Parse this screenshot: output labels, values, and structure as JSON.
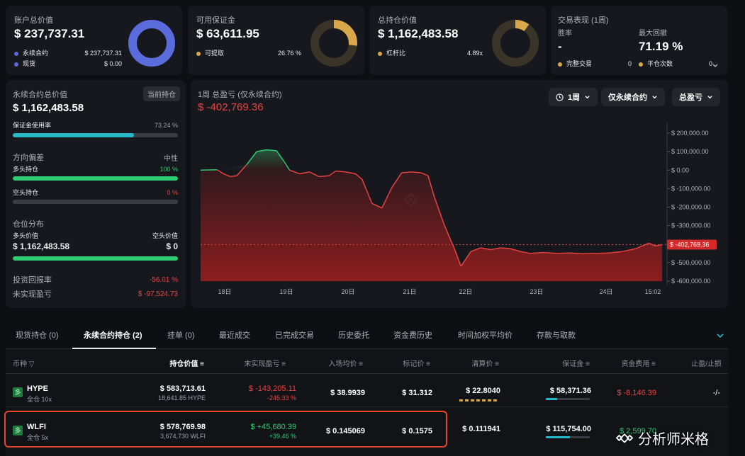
{
  "colors": {
    "accent_blue": "#5a6bdc",
    "accent_gold": "#d9a84a",
    "green": "#2ecc71",
    "red": "#e84343",
    "cyan": "#27b8c6",
    "highlight_border": "#e8452c"
  },
  "account": {
    "title": "账户总价值",
    "value": "$ 237,737.31",
    "perp_label": "永续合约",
    "perp_value": "$ 237,737.31",
    "spot_label": "现货",
    "spot_value": "$ 0.00",
    "perp_share": 1.0
  },
  "margin": {
    "title": "可用保证金",
    "value": "$ 63,611.95",
    "withdrawable_label": "可提取",
    "withdrawable_value": "26.76 %",
    "share": 0.2676
  },
  "holdings": {
    "title": "总持仓价值",
    "value": "$ 1,162,483.58",
    "leverage_label": "杠杆比",
    "leverage_value": "4.89x",
    "share": 0.1
  },
  "performance": {
    "title": "交易表现 (1周)",
    "win_rate_label": "胜率",
    "win_rate_value": "-",
    "max_dd_label": "最大回撤",
    "max_dd_value": "71.19 %",
    "completed_label": "完整交易",
    "completed_value": "0",
    "closed_label": "平仓次数",
    "closed_value": "0"
  },
  "perp_panel": {
    "title": "永续合约总价值",
    "badge": "当前持仓",
    "value": "$ 1,162,483.58",
    "margin_use_label": "保证金使用率",
    "margin_use_value": "73.24 %",
    "margin_use": 0.7324,
    "bias_label": "方向偏差",
    "bias_value": "中性",
    "long_label": "多头持仓",
    "long_value": "100 %",
    "long_share": 1.0,
    "short_label": "空头持仓",
    "short_value": "0 %",
    "short_share": 0.0,
    "dist_label": "仓位分布",
    "dist_long_label": "多头价值",
    "dist_short_label": "空头价值",
    "dist_long_value": "$ 1,162,483.58",
    "dist_short_value": "$ 0",
    "dist_long_share": 1.0,
    "roi_label": "投资回报率",
    "roi_value": "-56.01 %",
    "upnl_label": "未实现盈亏",
    "upnl_value": "$ -97,524.73"
  },
  "chart_header": {
    "title": "1周 总盈亏 (仅永续合约)",
    "value": "$ -402,769.36",
    "period": "1周",
    "scope": "仅永续合约",
    "metric": "总盈亏",
    "clock_icon": "clock-icon",
    "chevron_icon": "chevron-down-icon"
  },
  "chart_data": {
    "type": "area",
    "x_labels": [
      "18日",
      "19日",
      "20日",
      "21日",
      "22日",
      "23日",
      "24日",
      "15:02"
    ],
    "y_ticks": [
      "$ 200,000.00",
      "$ 100,000.00",
      "$ 0.00",
      "$ -100,000.00",
      "$ -200,000.00",
      "$ -300,000.00",
      "$ -400,000.00",
      "$ -500,000.00",
      "$ -600,000.00"
    ],
    "ylim": [
      -600000,
      200000
    ],
    "current_label": "$ -402,769.36",
    "current_value": -402769.36,
    "points": [
      [
        0.0,
        0
      ],
      [
        0.25,
        2000
      ],
      [
        0.35,
        -20000
      ],
      [
        0.45,
        -35000
      ],
      [
        0.55,
        -30000
      ],
      [
        0.7,
        30000
      ],
      [
        0.85,
        100000
      ],
      [
        1.0,
        110000
      ],
      [
        1.15,
        105000
      ],
      [
        1.25,
        55000
      ],
      [
        1.35,
        0
      ],
      [
        1.5,
        -20000
      ],
      [
        1.65,
        -10000
      ],
      [
        1.8,
        -35000
      ],
      [
        1.95,
        -30000
      ],
      [
        2.05,
        -5000
      ],
      [
        2.2,
        -10000
      ],
      [
        2.35,
        -20000
      ],
      [
        2.45,
        -50000
      ],
      [
        2.6,
        -180000
      ],
      [
        2.75,
        -205000
      ],
      [
        2.9,
        -95000
      ],
      [
        3.05,
        -15000
      ],
      [
        3.2,
        -10000
      ],
      [
        3.35,
        -15000
      ],
      [
        3.45,
        -30000
      ],
      [
        3.55,
        -150000
      ],
      [
        3.7,
        -300000
      ],
      [
        3.85,
        -425000
      ],
      [
        3.95,
        -520000
      ],
      [
        4.1,
        -440000
      ],
      [
        4.25,
        -420000
      ],
      [
        4.4,
        -430000
      ],
      [
        4.55,
        -420000
      ],
      [
        4.7,
        -425000
      ],
      [
        4.85,
        -440000
      ],
      [
        5.0,
        -450000
      ],
      [
        5.2,
        -445000
      ],
      [
        5.4,
        -450000
      ],
      [
        5.6,
        -448000
      ],
      [
        5.8,
        -452000
      ],
      [
        6.0,
        -450000
      ],
      [
        6.2,
        -448000
      ],
      [
        6.4,
        -440000
      ],
      [
        6.6,
        -425000
      ],
      [
        6.8,
        -395000
      ],
      [
        6.9,
        -410000
      ],
      [
        7.0,
        -402769
      ]
    ]
  },
  "tabs": [
    "现货持仓 (0)",
    "永续合约持仓 (2)",
    "挂单 (0)",
    "最近成交",
    "已完成交易",
    "历史委托",
    "资金费历史",
    "时间加权平均价",
    "存款与取款"
  ],
  "table": {
    "headers": [
      "币种",
      "持仓价值",
      "未实现盈亏",
      "入场均价",
      "标记价",
      "清算价",
      "保证金",
      "资金费用",
      "止盈/止损"
    ],
    "rows": [
      {
        "badge": "多",
        "coin": "HYPE",
        "mode": "全仓 10x",
        "value": "$ 583,713.61",
        "qty": "18,641.85 HYPE",
        "upnl": "$ -143,205.11",
        "upnl_pct": "-245.33 %",
        "entry": "$ 38.9939",
        "mark": "$ 31.312",
        "liq": "$ 22.8040",
        "margin": "$ 58,371.36",
        "margin_share": 0.25,
        "funding": "$ -8,146.39",
        "tpsl": "-/-"
      },
      {
        "badge": "多",
        "coin": "WLFI",
        "mode": "全仓 5x",
        "value": "$ 578,769.98",
        "qty": "3,674,730 WLFI",
        "upnl": "$ +45,680.39",
        "upnl_pct": "+39.46 %",
        "entry": "$ 0.145069",
        "mark": "$ 0.1575",
        "liq": "$ 0.111941",
        "margin": "$ 115,754.00",
        "margin_share": 0.55,
        "funding": "$ 2,599.70",
        "tpsl": ""
      }
    ]
  },
  "watermark": "分析师米格"
}
